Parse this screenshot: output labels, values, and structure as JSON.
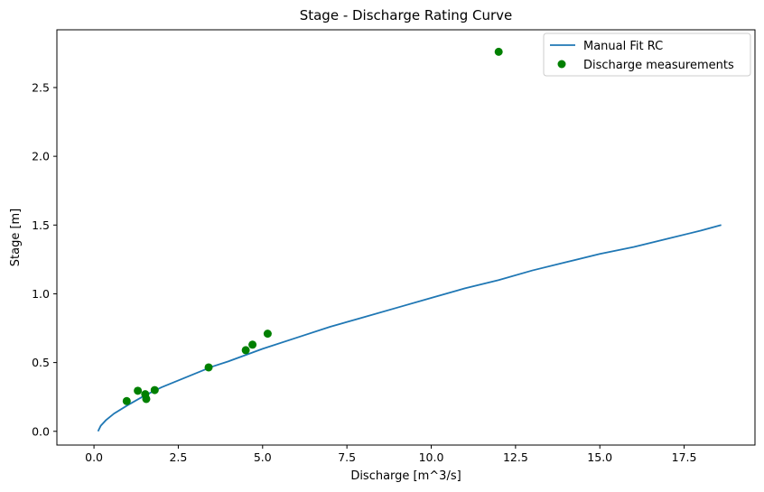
{
  "chart_data": {
    "type": "scatter",
    "title": "Stage - Discharge Rating Curve",
    "xlabel": "Discharge [m^3/s]",
    "ylabel": "Stage [m]",
    "xlim": [
      -1.1,
      19.6
    ],
    "ylim": [
      -0.1,
      2.92
    ],
    "xticks": [
      0.0,
      2.5,
      5.0,
      7.5,
      10.0,
      12.5,
      15.0,
      17.5
    ],
    "xtick_labels": [
      "0.0",
      "2.5",
      "5.0",
      "7.5",
      "10.0",
      "12.5",
      "15.0",
      "17.5"
    ],
    "yticks": [
      0.0,
      0.5,
      1.0,
      1.5,
      2.0,
      2.5
    ],
    "ytick_labels": [
      "0.0",
      "0.5",
      "1.0",
      "1.5",
      "2.0",
      "2.5"
    ],
    "grid": false,
    "legend_position": "top-right",
    "series": [
      {
        "name": "Manual Fit RC",
        "kind": "line",
        "color": "#1f77b4",
        "x": [
          0.12,
          0.2,
          0.35,
          0.6,
          1.0,
          1.5,
          2.0,
          2.5,
          3.0,
          3.5,
          4.0,
          5.0,
          6.0,
          7.0,
          8.0,
          9.0,
          10.0,
          11.0,
          12.0,
          13.0,
          14.0,
          15.0,
          16.0,
          17.0,
          18.0,
          18.6
        ],
        "y": [
          0.0,
          0.04,
          0.08,
          0.13,
          0.19,
          0.26,
          0.32,
          0.37,
          0.42,
          0.47,
          0.51,
          0.6,
          0.68,
          0.76,
          0.83,
          0.9,
          0.97,
          1.04,
          1.1,
          1.17,
          1.23,
          1.29,
          1.34,
          1.4,
          1.46,
          1.5
        ]
      },
      {
        "name": "Discharge measurements",
        "kind": "scatter",
        "color": "#008000",
        "x": [
          0.97,
          1.3,
          1.52,
          1.55,
          1.8,
          3.4,
          4.5,
          4.7,
          5.15,
          12.0
        ],
        "y": [
          0.22,
          0.295,
          0.27,
          0.235,
          0.3,
          0.465,
          0.59,
          0.63,
          0.71,
          2.76
        ]
      }
    ]
  }
}
